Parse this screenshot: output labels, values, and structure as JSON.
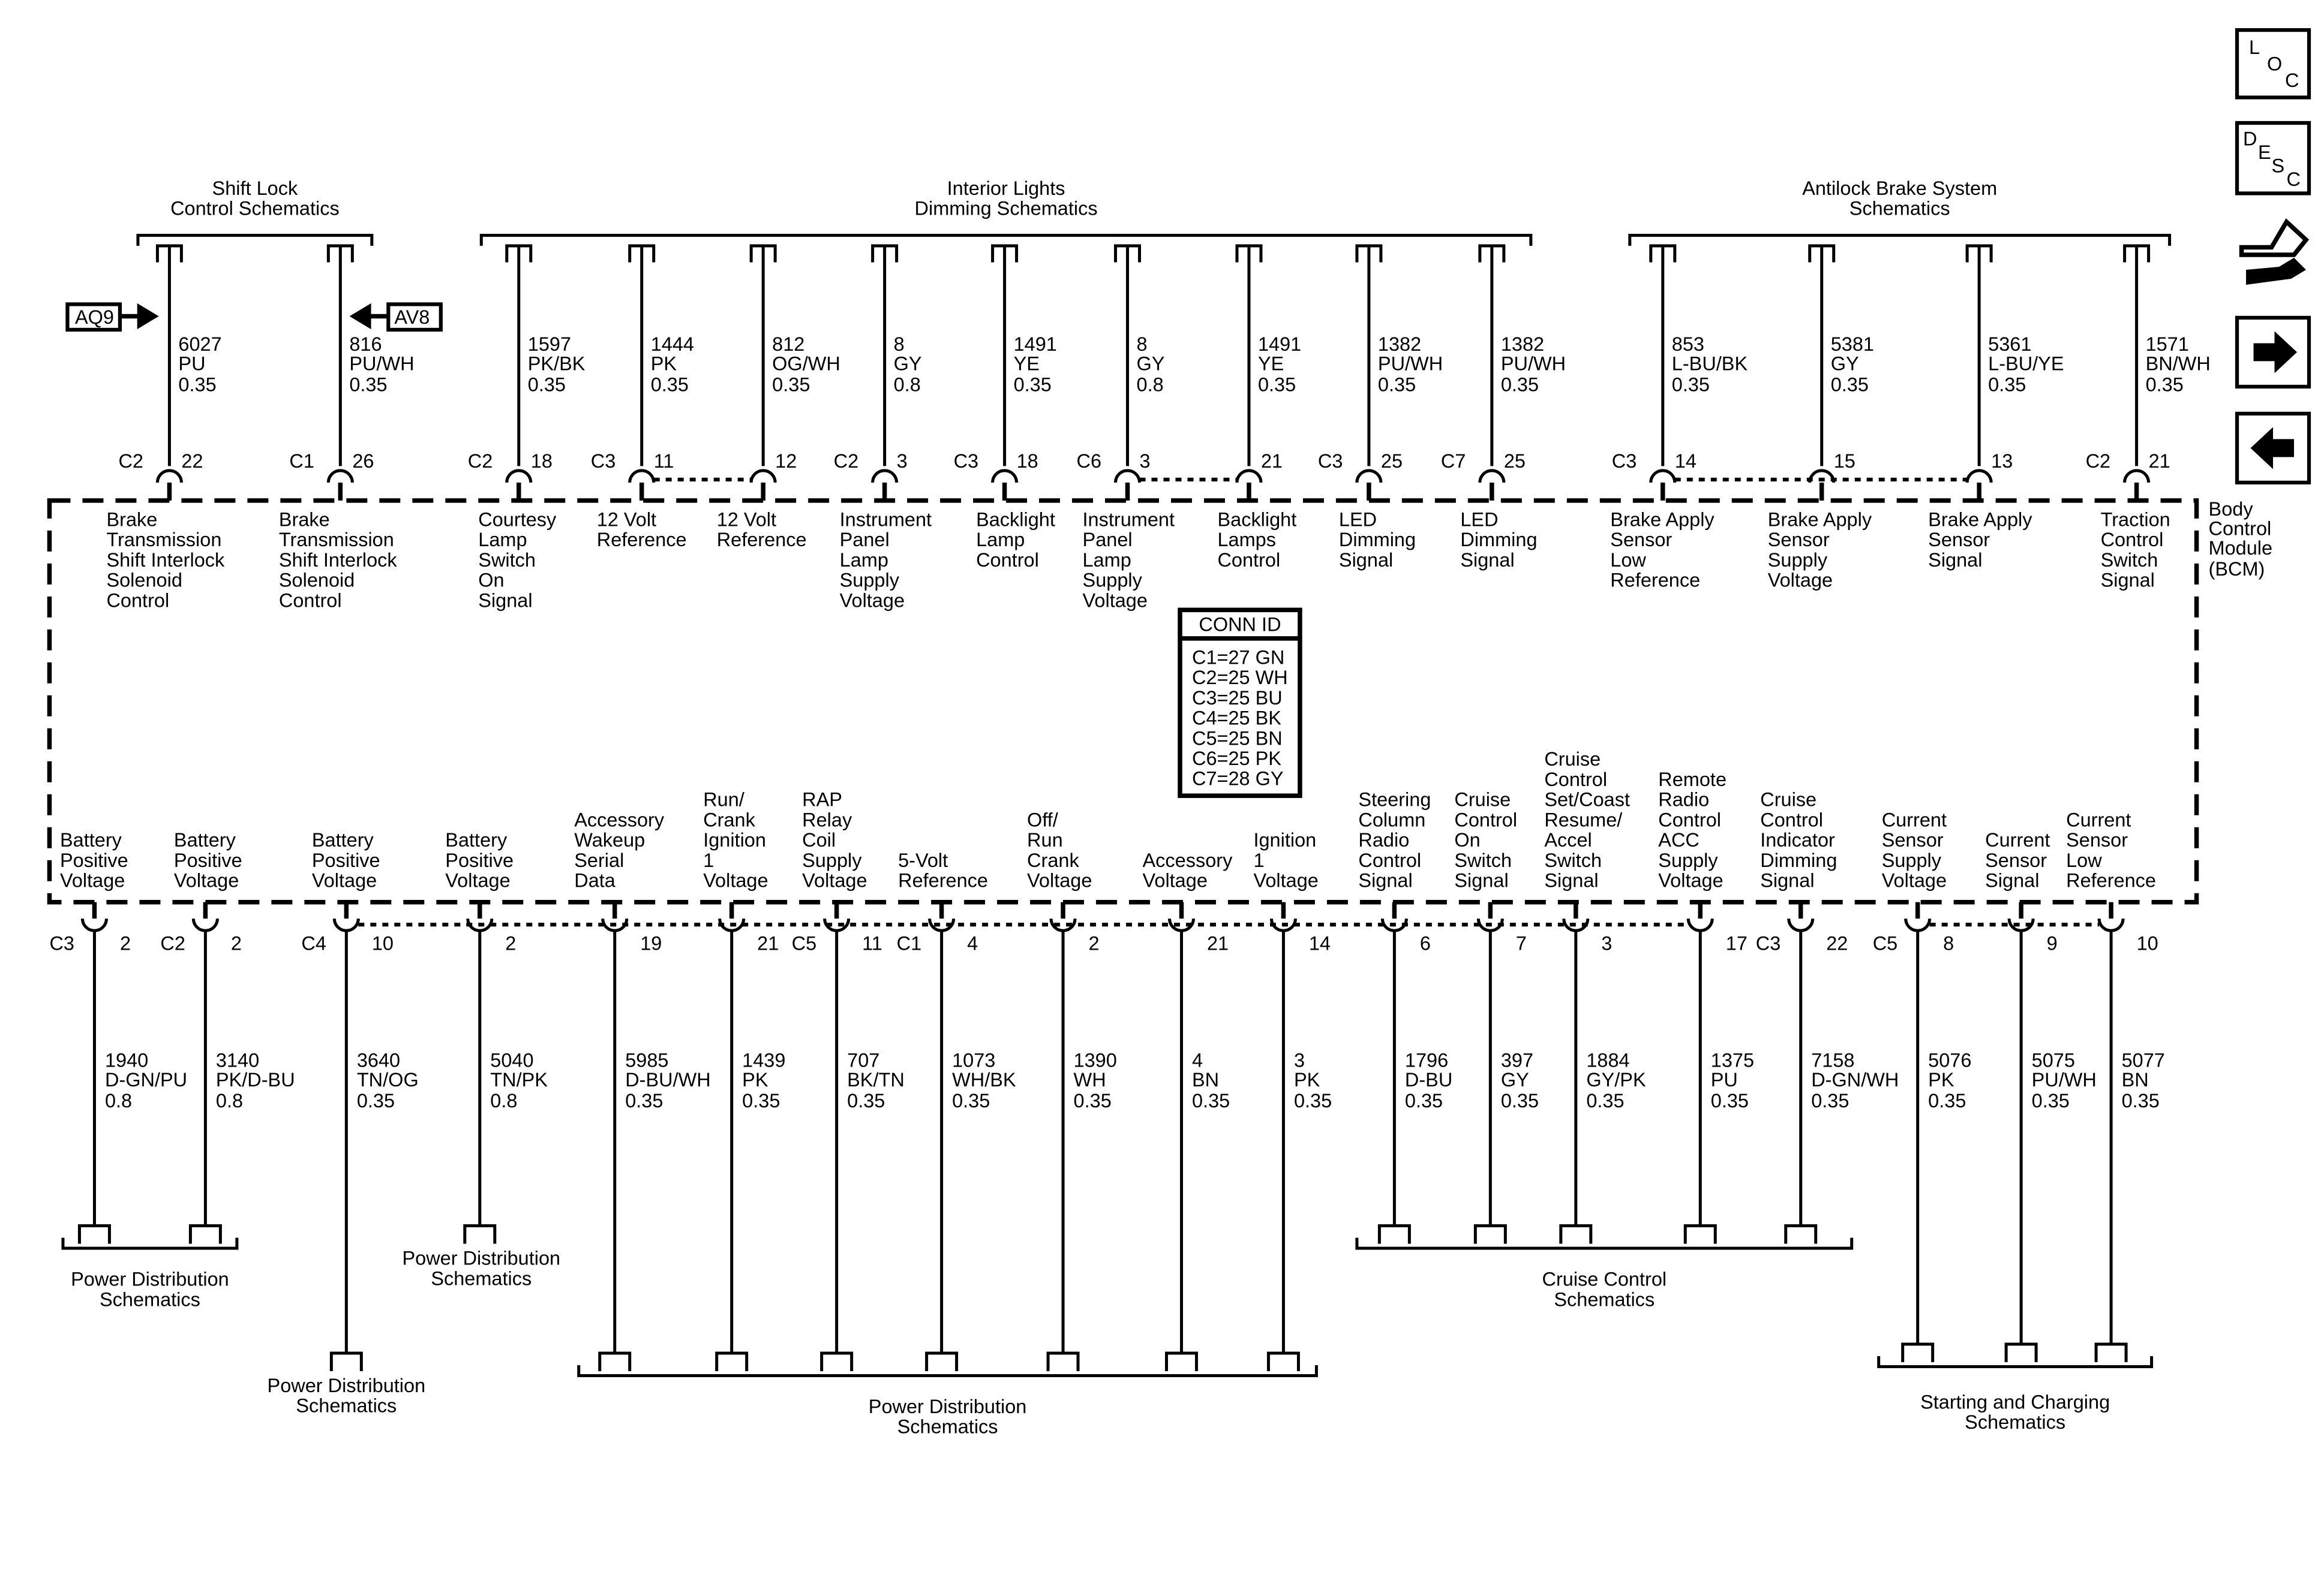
{
  "module": {
    "label": [
      "Body",
      "Control",
      "Module",
      "(BCM)"
    ]
  },
  "conn_id": {
    "title": "CONN ID",
    "rows": [
      "C1=27 GN",
      "C2=25 WH",
      "C3=25 BU",
      "C4=25 BK",
      "C5=25 BN",
      "C6=25 PK",
      "C7=28 GY"
    ]
  },
  "top_groups": [
    {
      "label": [
        "Shift Lock",
        "Control Schematics"
      ]
    },
    {
      "label": [
        "Interior Lights",
        "Dimming Schematics"
      ]
    },
    {
      "label": [
        "Antilock Brake System",
        "Schematics"
      ]
    }
  ],
  "offpage": [
    {
      "label": "AQ9",
      "direction": "right-arrow"
    },
    {
      "label": "AV8",
      "direction": "left-arrow"
    }
  ],
  "top_wires": [
    {
      "conn": "C2",
      "pin": "22",
      "circuit": "6027",
      "color": "PU",
      "size": "0.35",
      "function": [
        "Brake",
        "Transmission",
        "Shift Interlock",
        "Solenoid",
        "Control"
      ]
    },
    {
      "conn": "C1",
      "pin": "26",
      "circuit": "816",
      "color": "PU/WH",
      "size": "0.35",
      "function": [
        "Brake",
        "Transmission",
        "Shift Interlock",
        "Solenoid",
        "Control"
      ]
    },
    {
      "conn": "C2",
      "pin": "18",
      "circuit": "1597",
      "color": "PK/BK",
      "size": "0.35",
      "function": [
        "Courtesy",
        "Lamp",
        "Switch",
        "On",
        "Signal"
      ]
    },
    {
      "conn": "C3",
      "pin": "11",
      "circuit": "1444",
      "color": "PK",
      "size": "0.35",
      "function": [
        "12 Volt",
        "Reference"
      ]
    },
    {
      "conn": "",
      "pin": "12",
      "circuit": "812",
      "color": "OG/WH",
      "size": "0.35",
      "function": [
        "12 Volt",
        "Reference"
      ]
    },
    {
      "conn": "C2",
      "pin": "3",
      "circuit": "8",
      "color": "GY",
      "size": "0.8",
      "function": [
        "Instrument",
        "Panel",
        "Lamp",
        "Supply",
        "Voltage"
      ]
    },
    {
      "conn": "C3",
      "pin": "18",
      "circuit": "1491",
      "color": "YE",
      "size": "0.35",
      "function": [
        "Backlight",
        "Lamp",
        "Control"
      ]
    },
    {
      "conn": "C6",
      "pin": "3",
      "circuit": "8",
      "color": "GY",
      "size": "0.8",
      "function": [
        "Instrument",
        "Panel",
        "Lamp",
        "Supply",
        "Voltage"
      ]
    },
    {
      "conn": "",
      "pin": "21",
      "circuit": "1491",
      "color": "YE",
      "size": "0.35",
      "function": [
        "Backlight",
        "Lamps",
        "Control"
      ]
    },
    {
      "conn": "C3",
      "pin": "25",
      "circuit": "1382",
      "color": "PU/WH",
      "size": "0.35",
      "function": [
        "LED",
        "Dimming",
        "Signal"
      ]
    },
    {
      "conn": "C7",
      "pin": "25",
      "circuit": "1382",
      "color": "PU/WH",
      "size": "0.35",
      "function": [
        "LED",
        "Dimming",
        "Signal"
      ]
    },
    {
      "conn": "C3",
      "pin": "14",
      "circuit": "853",
      "color": "L-BU/BK",
      "size": "0.35",
      "function": [
        "Brake Apply",
        "Sensor",
        "Low",
        "Reference"
      ]
    },
    {
      "conn": "",
      "pin": "15",
      "circuit": "5381",
      "color": "GY",
      "size": "0.35",
      "function": [
        "Brake Apply",
        "Sensor",
        "Supply",
        "Voltage"
      ]
    },
    {
      "conn": "",
      "pin": "13",
      "circuit": "5361",
      "color": "L-BU/YE",
      "size": "0.35",
      "function": [
        "Brake Apply",
        "Sensor",
        "Signal"
      ]
    },
    {
      "conn": "C2",
      "pin": "21",
      "circuit": "1571",
      "color": "BN/WH",
      "size": "0.35",
      "function": [
        "Traction",
        "Control",
        "Switch",
        "Signal"
      ]
    }
  ],
  "bottom_wires": [
    {
      "conn": "C3",
      "pin": "2",
      "circuit": "1940",
      "color": "D-GN/PU",
      "size": "0.8",
      "function": [
        "Battery",
        "Positive",
        "Voltage"
      ]
    },
    {
      "conn": "C2",
      "pin": "2",
      "circuit": "3140",
      "color": "PK/D-BU",
      "size": "0.8",
      "function": [
        "Battery",
        "Positive",
        "Voltage"
      ]
    },
    {
      "conn": "C4",
      "pin": "10",
      "circuit": "3640",
      "color": "TN/OG",
      "size": "0.35",
      "function": [
        "Battery",
        "Positive",
        "Voltage"
      ]
    },
    {
      "conn": "",
      "pin": "2",
      "circuit": "5040",
      "color": "TN/PK",
      "size": "0.8",
      "function": [
        "Battery",
        "Positive",
        "Voltage"
      ]
    },
    {
      "conn": "",
      "pin": "19",
      "circuit": "5985",
      "color": "D-BU/WH",
      "size": "0.35",
      "function": [
        "Accessory",
        "Wakeup",
        "Serial",
        "Data"
      ]
    },
    {
      "conn": "",
      "pin": "21",
      "circuit": "1439",
      "color": "PK",
      "size": "0.35",
      "function": [
        "Run/",
        "Crank",
        "Ignition",
        "1",
        "Voltage"
      ]
    },
    {
      "conn": "C5",
      "pin": "11",
      "circuit": "707",
      "color": "BK/TN",
      "size": "0.35",
      "function": [
        "RAP",
        "Relay",
        "Coil",
        "Supply",
        "Voltage"
      ]
    },
    {
      "conn": "C1",
      "pin": "4",
      "circuit": "1073",
      "color": "WH/BK",
      "size": "0.35",
      "function": [
        "5-Volt",
        "Reference"
      ]
    },
    {
      "conn": "",
      "pin": "2",
      "circuit": "1390",
      "color": "WH",
      "size": "0.35",
      "function": [
        "Off/",
        "Run",
        "Crank",
        "Voltage"
      ]
    },
    {
      "conn": "",
      "pin": "21",
      "circuit": "4",
      "color": "BN",
      "size": "0.35",
      "function": [
        "Accessory",
        "Voltage"
      ]
    },
    {
      "conn": "",
      "pin": "14",
      "circuit": "3",
      "color": "PK",
      "size": "0.35",
      "function": [
        "Ignition",
        "1",
        "Voltage"
      ]
    },
    {
      "conn": "",
      "pin": "6",
      "circuit": "1796",
      "color": "D-BU",
      "size": "0.35",
      "function": [
        "Steering",
        "Column",
        "Radio",
        "Control",
        "Signal"
      ]
    },
    {
      "conn": "",
      "pin": "7",
      "circuit": "397",
      "color": "GY",
      "size": "0.35",
      "function": [
        "Cruise",
        "Control",
        "On",
        "Switch",
        "Signal"
      ]
    },
    {
      "conn": "",
      "pin": "3",
      "circuit": "1884",
      "color": "GY/PK",
      "size": "0.35",
      "function": [
        "Cruise",
        "Control",
        "Set/Coast",
        "Resume/",
        "Accel",
        "Switch",
        "Signal"
      ]
    },
    {
      "conn": "",
      "pin": "17",
      "circuit": "1375",
      "color": "PU",
      "size": "0.35",
      "function": [
        "Remote",
        "Radio",
        "Control",
        "ACC",
        "Supply",
        "Voltage"
      ]
    },
    {
      "conn": "C3",
      "pin": "22",
      "circuit": "7158",
      "color": "D-GN/WH",
      "size": "0.35",
      "function": [
        "Cruise",
        "Control",
        "Indicator",
        "Dimming",
        "Signal"
      ]
    },
    {
      "conn": "C5",
      "pin": "8",
      "circuit": "5076",
      "color": "PK",
      "size": "0.35",
      "function": [
        "Current",
        "Sensor",
        "Supply",
        "Voltage"
      ]
    },
    {
      "conn": "",
      "pin": "9",
      "circuit": "5075",
      "color": "PU/WH",
      "size": "0.35",
      "function": [
        "Current",
        "Sensor",
        "Signal"
      ]
    },
    {
      "conn": "",
      "pin": "10",
      "circuit": "5077",
      "color": "BN",
      "size": "0.35",
      "function": [
        "Current",
        "Sensor",
        "Low",
        "Reference"
      ]
    }
  ],
  "bottom_groups": [
    {
      "label": [
        "Power Distribution",
        "Schematics"
      ]
    },
    {
      "label": [
        "Power Distribution",
        "Schematics"
      ]
    },
    {
      "label": [
        "Power Distribution",
        "Schematics"
      ]
    },
    {
      "label": [
        "Power Distribution",
        "Schematics"
      ]
    },
    {
      "label": [
        "Cruise Control",
        "Schematics"
      ]
    },
    {
      "label": [
        "Starting and Charging",
        "Schematics"
      ]
    }
  ],
  "side_icons": [
    {
      "name": "loc-icon",
      "text": [
        "L",
        "O",
        "C"
      ]
    },
    {
      "name": "desc-icon",
      "text": [
        "D",
        "E",
        "S",
        "C"
      ]
    },
    {
      "name": "connector-wrench-icon"
    },
    {
      "name": "next-arrow-icon"
    },
    {
      "name": "previous-arrow-icon"
    }
  ]
}
